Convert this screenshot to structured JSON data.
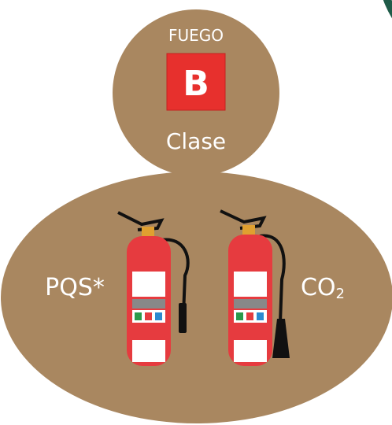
{
  "header": {
    "top_label": "FUEGO",
    "class_letter": "B",
    "bottom_label": "Clase"
  },
  "labels": {
    "left": "PQS*",
    "right": {
      "base": "CO",
      "sub": "2"
    }
  }
}
